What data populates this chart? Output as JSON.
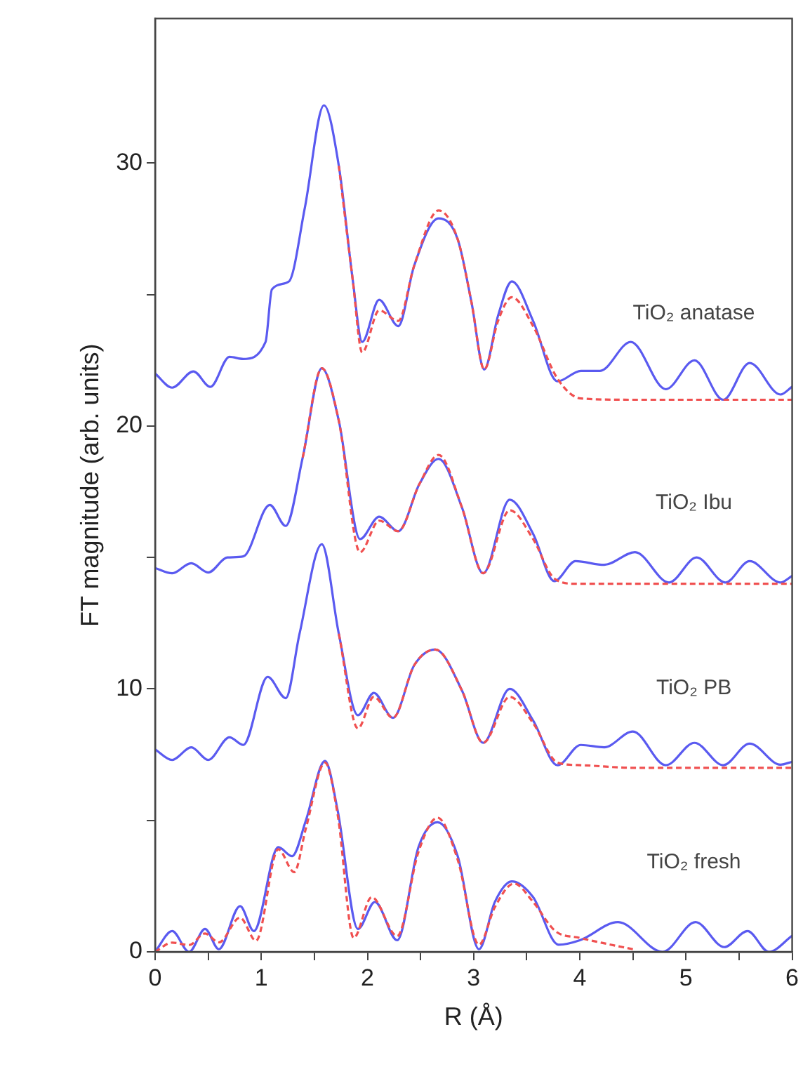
{
  "chart_data": {
    "type": "line",
    "xlabel": "R (Å)",
    "ylabel": "FT magnitude (arb. units)",
    "xlim": [
      0,
      6
    ],
    "ylim": [
      0,
      35.5
    ],
    "xticks": [
      0,
      {
        "value": 0.5,
        "label": null
      },
      1,
      {
        "value": 1.5,
        "label": null
      },
      2,
      {
        "value": 2.5,
        "label": null
      },
      3,
      {
        "value": 3.5,
        "label": null
      },
      4,
      {
        "value": 4.5,
        "label": null
      },
      5,
      {
        "value": 5.5,
        "label": null
      },
      6
    ],
    "yticks": [
      0,
      {
        "value": 5,
        "label": null
      },
      10,
      {
        "value": 15,
        "label": null
      },
      20,
      {
        "value": 25,
        "label": null
      },
      30
    ],
    "grid": false,
    "legend": false,
    "marker": "none",
    "series": [
      {
        "color": "#5a5af0",
        "line_style": "solid",
        "x": [
          0,
          0.16,
          0.36,
          0.52,
          0.7,
          0.83,
          1.04,
          1.1,
          1.26,
          1.41,
          1.59,
          1.73,
          1.86,
          1.95,
          2.11,
          2.29,
          2.44,
          2.67,
          2.85,
          2.98,
          3.1,
          3.23,
          3.36,
          3.56,
          3.79,
          4.01,
          4.19,
          4.48,
          4.81,
          5.08,
          5.35,
          5.6,
          5.89,
          6
        ],
        "values": [
          22.0,
          21.46,
          22.08,
          21.49,
          22.63,
          22.55,
          23.2,
          25.2,
          25.5,
          28.3,
          32.2,
          29.9,
          25.6,
          23.2,
          24.8,
          23.8,
          26.1,
          27.9,
          27.1,
          24.7,
          22.15,
          24.2,
          25.5,
          24.0,
          21.7,
          22.1,
          22.1,
          23.2,
          21.4,
          22.5,
          21.0,
          22.4,
          21.2,
          21.5
        ]
      },
      {
        "color": "#f05050",
        "line_style": "dashed",
        "x": [
          1.73,
          1.86,
          1.95,
          2.11,
          2.29,
          2.44,
          2.67,
          2.85,
          2.98,
          3.1,
          3.23,
          3.36,
          3.56,
          3.79,
          4.01,
          4.5,
          5,
          5.5,
          6
        ],
        "values": [
          29.9,
          25.6,
          22.8,
          24.4,
          24.0,
          26.1,
          28.2,
          27.1,
          24.7,
          22.15,
          24.0,
          24.9,
          23.8,
          21.8,
          21.05,
          21.0,
          21.0,
          21.0,
          21.0
        ]
      },
      {
        "color": "#5a5af0",
        "line_style": "solid",
        "x": [
          0,
          0.16,
          0.34,
          0.5,
          0.68,
          0.83,
          1.08,
          1.23,
          1.39,
          1.57,
          1.73,
          1.93,
          2.11,
          2.29,
          2.49,
          2.67,
          2.89,
          3.09,
          3.34,
          3.56,
          3.76,
          3.96,
          4.23,
          4.52,
          4.84,
          5.1,
          5.37,
          5.6,
          5.89,
          6
        ],
        "values": [
          14.6,
          14.4,
          14.78,
          14.43,
          15.0,
          15.04,
          17.0,
          16.2,
          18.8,
          22.2,
          20.2,
          15.7,
          16.55,
          16.0,
          17.8,
          18.75,
          16.9,
          14.4,
          17.2,
          15.9,
          14.1,
          14.86,
          14.72,
          15.2,
          14.05,
          15.0,
          14.05,
          14.86,
          14.05,
          14.3
        ]
      },
      {
        "color": "#f05050",
        "line_style": "dashed",
        "x": [
          1.39,
          1.57,
          1.73,
          1.93,
          2.11,
          2.29,
          2.49,
          2.67,
          2.89,
          3.09,
          3.34,
          3.56,
          3.76,
          3.96,
          4.5,
          5,
          5.5,
          6
        ],
        "values": [
          18.8,
          22.2,
          20.2,
          15.2,
          16.4,
          16.0,
          17.8,
          18.9,
          16.9,
          14.4,
          16.8,
          15.7,
          14.2,
          14.0,
          14.0,
          14.0,
          14.0,
          14.0
        ]
      },
      {
        "color": "#5a5af0",
        "line_style": "solid",
        "x": [
          0,
          0.16,
          0.34,
          0.5,
          0.7,
          0.83,
          1.06,
          1.23,
          1.36,
          1.57,
          1.73,
          1.91,
          2.06,
          2.24,
          2.44,
          2.64,
          2.89,
          3.09,
          3.34,
          3.56,
          3.79,
          4.01,
          4.23,
          4.5,
          4.81,
          5.08,
          5.35,
          5.6,
          5.89,
          6
        ],
        "values": [
          7.7,
          7.3,
          7.78,
          7.3,
          8.16,
          7.87,
          10.46,
          9.65,
          12.1,
          15.5,
          12.1,
          9.0,
          9.85,
          8.9,
          10.9,
          11.5,
          9.94,
          7.95,
          10.0,
          8.8,
          7.1,
          7.87,
          7.78,
          8.38,
          7.1,
          7.95,
          7.1,
          7.92,
          7.12,
          7.23
        ]
      },
      {
        "color": "#f05050",
        "line_style": "dashed",
        "x": [
          1.73,
          1.91,
          2.06,
          2.24,
          2.44,
          2.64,
          2.89,
          3.09,
          3.34,
          3.56,
          3.79,
          4.01,
          4.5,
          5,
          5.5,
          6
        ],
        "values": [
          12.1,
          8.5,
          9.7,
          8.9,
          10.9,
          11.5,
          9.94,
          7.95,
          9.7,
          8.7,
          7.2,
          7.1,
          7.0,
          7.0,
          7.0,
          7.0
        ]
      },
      {
        "color": "#5a5af0",
        "line_style": "solid",
        "x": [
          0,
          0.16,
          0.32,
          0.47,
          0.6,
          0.8,
          0.93,
          1.16,
          1.29,
          1.42,
          1.6,
          1.72,
          1.91,
          2.07,
          2.28,
          2.48,
          2.66,
          2.85,
          3.05,
          3.2,
          3.36,
          3.56,
          3.8,
          4.0,
          4.36,
          4.78,
          5.09,
          5.36,
          5.58,
          5.78,
          6
        ],
        "values": [
          0.0,
          0.79,
          0.0,
          0.87,
          0.1,
          1.74,
          0.79,
          3.98,
          3.64,
          5.0,
          7.26,
          5.36,
          0.87,
          1.9,
          0.44,
          3.98,
          4.93,
          3.64,
          0.1,
          1.9,
          2.68,
          2.08,
          0.27,
          0.44,
          1.13,
          0.0,
          1.13,
          0.18,
          0.79,
          0.0,
          0.61
        ]
      },
      {
        "color": "#f05050",
        "line_style": "dashed",
        "x": [
          0,
          0.16,
          0.32,
          0.47,
          0.6,
          0.8,
          0.95,
          1.16,
          1.31,
          1.42,
          1.6,
          1.72,
          1.87,
          2.04,
          2.28,
          2.48,
          2.66,
          2.85,
          3.05,
          3.2,
          3.38,
          3.56,
          3.77,
          4.0,
          4.2,
          4.5
        ],
        "values": [
          0.0,
          0.35,
          0.26,
          0.7,
          0.36,
          1.3,
          0.42,
          3.9,
          3.03,
          4.7,
          7.2,
          5.2,
          0.53,
          2.08,
          0.6,
          3.8,
          5.1,
          3.5,
          0.27,
          1.7,
          2.6,
          1.9,
          0.79,
          0.53,
          0.35,
          0.1
        ]
      }
    ],
    "annotations": [
      "TiO₂ anatase",
      "TiO₂ Ibu",
      "TiO₂ PB",
      "TiO₂ fresh"
    ]
  }
}
